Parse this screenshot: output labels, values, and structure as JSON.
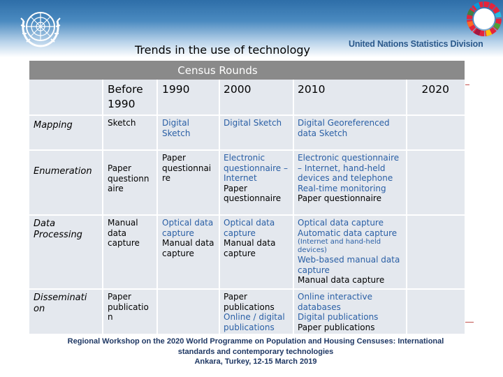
{
  "header": {
    "title": "Trends in the use of technology",
    "organization": "United Nations Statistics Division",
    "section": "Census Rounds"
  },
  "table": {
    "columns": [
      "",
      "Before 1990",
      "1990",
      "2000",
      "2010",
      "2020"
    ],
    "rows": [
      {
        "label": "Mapping",
        "cells": [
          [
            "Sketch"
          ],
          [
            "Digital Sketch"
          ],
          [
            "Digital Sketch"
          ],
          [
            "Digital Georeferenced data Sketch"
          ],
          [
            ""
          ]
        ]
      },
      {
        "label": "Enumeration",
        "cells": [
          [
            "Paper questionn aire"
          ],
          [
            "Paper questionnai re"
          ],
          [
            "Electronic questionnaire – Internet",
            "Paper questionnaire"
          ],
          [
            "Electronic questionnaire – Internet, hand-held devices and telephone",
            "Real-time monitoring",
            "Paper questionnaire"
          ],
          [
            ""
          ]
        ]
      },
      {
        "label": "Data Processing",
        "cells": [
          [
            "Manual data capture"
          ],
          [
            "Optical data capture",
            "Manual data capture"
          ],
          [
            "Optical data capture",
            "Manual data capture"
          ],
          [
            "Optical data capture",
            "Automatic data capture",
            "(Internet and hand-held devices)",
            "Web-based manual data capture",
            "Manual data capture"
          ],
          [
            ""
          ]
        ]
      },
      {
        "label": "Disseminati on",
        "cells": [
          [
            "Paper publicatio n"
          ],
          [
            ""
          ],
          [
            "Paper publications",
            "Online / digital publications"
          ],
          [
            "Online interactive databases",
            "Digital publications",
            "Paper publications"
          ],
          [
            ""
          ]
        ]
      }
    ]
  },
  "footer": {
    "line1": "Regional Workshop on the 2020 World Programme on Population and Housing Censuses: International",
    "line2": "standards and contemporary technologies",
    "line3": "Ankara, Turkey, 12-15 March 2019"
  },
  "colors": {
    "header_bg": "#8a8a8a",
    "cell_bg": "#e4e8ee",
    "highlight_text": "#2a5fa5",
    "footer_text": "#1f3864",
    "brand": "#2c5a8c"
  }
}
